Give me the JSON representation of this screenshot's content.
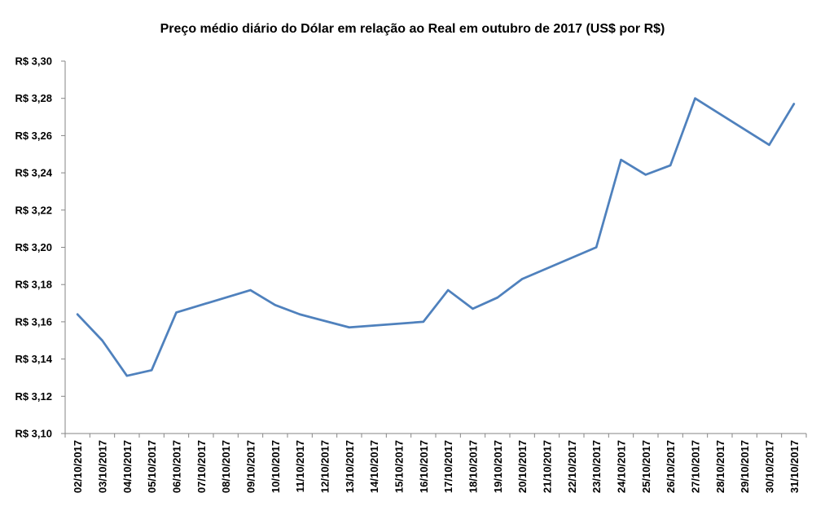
{
  "chart_data": {
    "type": "line",
    "title": "Preço médio diário do  Dólar em relação ao Real em outubro de 2017 (US$ por R$)",
    "xlabel": "",
    "ylabel": "",
    "ylim": [
      3.1,
      3.3
    ],
    "y_ticks": [
      "R$ 3,10",
      "R$ 3,12",
      "R$ 3,14",
      "R$ 3,16",
      "R$ 3,18",
      "R$ 3,20",
      "R$ 3,22",
      "R$ 3,24",
      "R$ 3,26",
      "R$ 3,28",
      "R$ 3,30"
    ],
    "y_tick_values": [
      3.1,
      3.12,
      3.14,
      3.16,
      3.18,
      3.2,
      3.22,
      3.24,
      3.26,
      3.28,
      3.3
    ],
    "categories": [
      "02/10/2017",
      "03/10/2017",
      "04/10/2017",
      "05/10/2017",
      "06/10/2017",
      "07/10/2017",
      "08/10/2017",
      "09/10/2017",
      "10/10/2017",
      "11/10/2017",
      "12/10/2017",
      "13/10/2017",
      "14/10/2017",
      "15/10/2017",
      "16/10/2017",
      "17/10/2017",
      "18/10/2017",
      "19/10/2017",
      "20/10/2017",
      "21/10/2017",
      "22/10/2017",
      "23/10/2017",
      "24/10/2017",
      "25/10/2017",
      "26/10/2017",
      "27/10/2017",
      "28/10/2017",
      "29/10/2017",
      "30/10/2017",
      "31/10/2017"
    ],
    "points": [
      {
        "x": "02/10/2017",
        "y": 3.164
      },
      {
        "x": "03/10/2017",
        "y": 3.15
      },
      {
        "x": "04/10/2017",
        "y": 3.131
      },
      {
        "x": "05/10/2017",
        "y": 3.134
      },
      {
        "x": "06/10/2017",
        "y": 3.165
      },
      {
        "x": "09/10/2017",
        "y": 3.177
      },
      {
        "x": "10/10/2017",
        "y": 3.169
      },
      {
        "x": "11/10/2017",
        "y": 3.164
      },
      {
        "x": "13/10/2017",
        "y": 3.157
      },
      {
        "x": "16/10/2017",
        "y": 3.16
      },
      {
        "x": "17/10/2017",
        "y": 3.177
      },
      {
        "x": "18/10/2017",
        "y": 3.167
      },
      {
        "x": "19/10/2017",
        "y": 3.173
      },
      {
        "x": "20/10/2017",
        "y": 3.183
      },
      {
        "x": "23/10/2017",
        "y": 3.2
      },
      {
        "x": "24/10/2017",
        "y": 3.247
      },
      {
        "x": "25/10/2017",
        "y": 3.239
      },
      {
        "x": "26/10/2017",
        "y": 3.244
      },
      {
        "x": "27/10/2017",
        "y": 3.28
      },
      {
        "x": "30/10/2017",
        "y": 3.255
      },
      {
        "x": "31/10/2017",
        "y": 3.277
      }
    ],
    "grid": false,
    "legend": "none",
    "line_color": "#4F81BD",
    "axis_color": "#868686"
  }
}
